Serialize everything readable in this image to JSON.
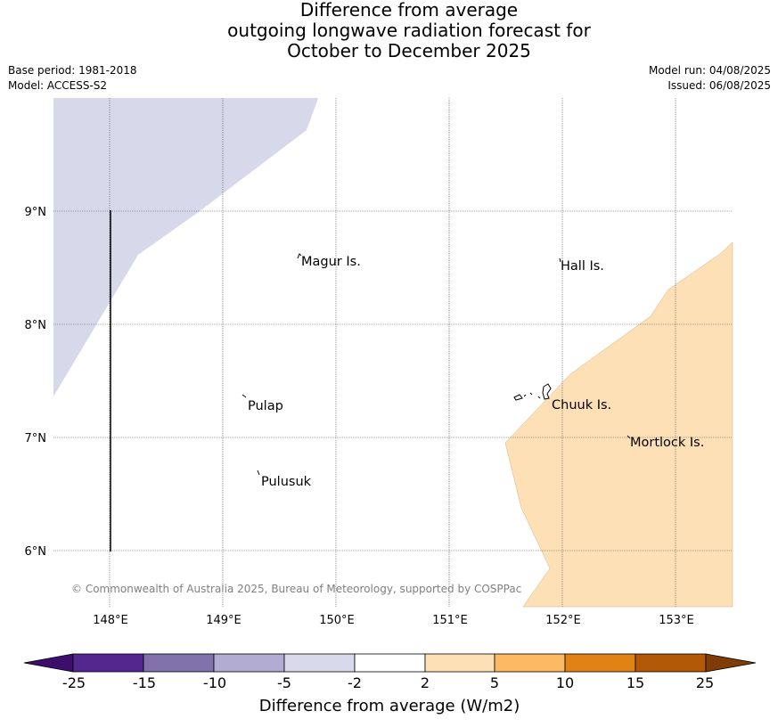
{
  "title": {
    "line1": "Difference from average",
    "line2": "outgoing longwave radiation forecast for",
    "line3": "October to December 2025"
  },
  "meta": {
    "base_period": "Base period: 1981-2018",
    "model": "Model: ACCESS-S2",
    "model_run": "Model run: 04/08/2025",
    "issued": "Issued: 06/08/2025"
  },
  "map": {
    "lon_labels": [
      "148°E",
      "149°E",
      "150°E",
      "151°E",
      "152°E",
      "153°E"
    ],
    "lat_labels": [
      "9°N",
      "8°N",
      "7°N",
      "6°N"
    ],
    "places": [
      {
        "name": "Magur Is."
      },
      {
        "name": "Hall Is."
      },
      {
        "name": "Pulap"
      },
      {
        "name": "Chuuk Is."
      },
      {
        "name": "Mortlock Is."
      },
      {
        "name": "Pulusuk"
      }
    ],
    "anomaly_colors": {
      "light_purple": "#d7d8ea",
      "light_orange": "#fde0b6"
    },
    "credit": "© Commonwealth of Australia 2025, Bureau of Meteorology, supported by COSPPac"
  },
  "colorbar": {
    "label": "Difference from average (W/m2)",
    "ticks": [
      "-25",
      "-15",
      "-10",
      "-5",
      "-2",
      "2",
      "5",
      "10",
      "15",
      "25"
    ],
    "colors": [
      "#3f0d6b",
      "#54278f",
      "#8073ac",
      "#b2abd2",
      "#d8daeb",
      "#ffffff",
      "#fee0b6",
      "#fdb863",
      "#e08214",
      "#b35806",
      "#7f3b08"
    ]
  }
}
